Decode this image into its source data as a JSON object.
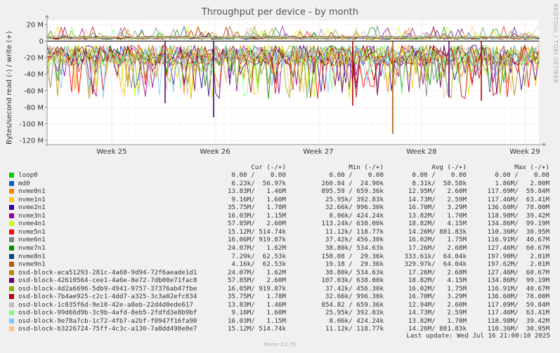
{
  "chart_data": {
    "type": "area",
    "title": "Throughput per device - by month",
    "ylabel": "Bytes/second read (-) / write (+)",
    "ylim": [
      -125000000,
      25000000
    ],
    "yticks": [
      20000000,
      0,
      -20000000,
      -40000000,
      -60000000,
      -80000000,
      -100000000,
      -120000000
    ],
    "ytick_labels": [
      "20 M",
      "0",
      "-20 M",
      "-40 M",
      "-60 M",
      "-80 M",
      "-100 M",
      "-120 M"
    ],
    "xticks": [
      "Week 25",
      "Week 26",
      "Week 27",
      "Week 28",
      "Week 29"
    ],
    "grid": true,
    "legend_placement": "bottom",
    "series_names": [
      "loop0",
      "md0",
      "nvme0n1",
      "nvme1n1",
      "nvme2n1",
      "nvme3n1",
      "nvme4n1",
      "nvme5n1",
      "nvme6n1",
      "nvme7n1",
      "nvme8n1",
      "nvme9n1",
      "osd-block-aca51293-281c-4a68-9d94-72f6aeade1d1",
      "osd-block-42610564-cee1-4a6e-8e72-7db00e71fac8",
      "osd-block-4d2a6696-5db9-4941-9757-37376ab47fbe",
      "osd-block-7b4ae925-c2c1-4dd7-a325-3c3a02efc834",
      "osd-block-1c035f6d-9e10-42e-a8eb-22d4d0ede617",
      "osd-block-99d66d9b-3c9b-4afd-8eb5-2fdfd3e8b9bf",
      "osd-block-9e78a7cb-1c72-4fb7-a2bf-f0947f16fa90",
      "osd-block-b3226724-75ff-4c3c-a130-7a8dd498e8e7"
    ]
  },
  "legend": {
    "headers": {
      "cur": "Cur (-/+)",
      "min": "Min (-/+)",
      "avg": "Avg (-/+)",
      "max": "Max (-/+)"
    },
    "rows": [
      {
        "name": "loop0",
        "color": "#00cc00",
        "cur": "0.00 /    0.00",
        "min": "0.00 /    0.00",
        "avg": "0.00 /    0.00",
        "max": "0.00 /    0.00"
      },
      {
        "name": "md0",
        "color": "#0066b3",
        "cur": "6.23k/  56.97k",
        "min": "260.84 /  24.90k",
        "avg": "8.31k/  58.58k",
        "max": "1.86M/   2.00M"
      },
      {
        "name": "nvme0n1",
        "color": "#ff8000",
        "cur": "13.83M/   1.46M",
        "min": "895.59 / 659.36k",
        "avg": "12.95M/   2.60M",
        "max": "117.09M/  59.84M"
      },
      {
        "name": "nvme1n1",
        "color": "#ffcc00",
        "cur": "9.16M/   1.60M",
        "min": "25.95k/ 392.83k",
        "avg": "14.73M/   2.59M",
        "max": "117.46M/  63.41M"
      },
      {
        "name": "nvme2n1",
        "color": "#330099",
        "cur": "35.75M/   1.78M",
        "min": "32.66k/ 996.30k",
        "avg": "16.70M/   3.29M",
        "max": "136.60M/  78.00M"
      },
      {
        "name": "nvme3n1",
        "color": "#990099",
        "cur": "16.03M/   1.15M",
        "min": "8.06k/ 424.24k",
        "avg": "13.82M/   1.70M",
        "max": "118.98M/  39.42M"
      },
      {
        "name": "nvme4n1",
        "color": "#ccff00",
        "cur": "57.85M/   2.60M",
        "min": "113.24k/ 638.00k",
        "avg": "18.82M/   4.15M",
        "max": "134.86M/  99.19M"
      },
      {
        "name": "nvme5n1",
        "color": "#ff0000",
        "cur": "15.12M/ 514.74k",
        "min": "11.12k/ 118.77k",
        "avg": "14.26M/ 881.83k",
        "max": "110.36M/  30.95M"
      },
      {
        "name": "nvme6n1",
        "color": "#808080",
        "cur": "16.06M/ 919.87k",
        "min": "37.42k/ 456.30k",
        "avg": "16.02M/   1.75M",
        "max": "116.91M/  40.67M"
      },
      {
        "name": "nvme7n1",
        "color": "#008f00",
        "cur": "24.07M/   1.62M",
        "min": "38.80k/ 534.63k",
        "avg": "17.26M/   2.68M",
        "max": "127.46M/  60.67M"
      },
      {
        "name": "nvme8n1",
        "color": "#00487d",
        "cur": "7.29k/  62.53k",
        "min": "158.08 /  29.36k",
        "avg": "333.61k/  64.04k",
        "max": "197.90M/   2.01M"
      },
      {
        "name": "nvme9n1",
        "color": "#b35a00",
        "cur": "4.16k/  62.53k",
        "min": "19.18 /  29.36k",
        "avg": "329.97k/  64.04k",
        "max": "197.62M/   2.01M"
      },
      {
        "name": "osd-block-aca51293-281c-4a68-9d94-72f6aeade1d1",
        "color": "#b38f00",
        "cur": "24.07M/   1.62M",
        "min": "38.80k/ 534.63k",
        "avg": "17.26M/   2.68M",
        "max": "127.46M/  60.67M"
      },
      {
        "name": "osd-block-42610564-cee1-4a6e-8e72-7db00e71fac8",
        "color": "#6b006b",
        "cur": "57.85M/   2.60M",
        "min": "107.03k/ 638.00k",
        "avg": "18.82M/   4.15M",
        "max": "134.86M/  99.19M"
      },
      {
        "name": "osd-block-4d2a6696-5db9-4941-9757-37376ab47fbe",
        "color": "#8fb300",
        "cur": "16.05M/ 919.87k",
        "min": "37.42k/ 456.30k",
        "avg": "16.02M/   1.75M",
        "max": "116.91M/  40.67M"
      },
      {
        "name": "osd-block-7b4ae925-c2c1-4dd7-a325-3c3a02efc834",
        "color": "#b30000",
        "cur": "35.75M/   1.78M",
        "min": "32.66k/ 996.30k",
        "avg": "16.70M/   3.29M",
        "max": "136.60M/  78.00M"
      },
      {
        "name": "osd-block-1c035f6d-9e10-42e-a8eb-22d4d0ede617",
        "color": "#bebebe",
        "cur": "13.83M/   1.46M",
        "min": "854.82 / 659.36k",
        "avg": "12.94M/   2.60M",
        "max": "117.09M/  59.84M"
      },
      {
        "name": "osd-block-99d66d9b-3c9b-4afd-8eb5-2fdfd3e8b9bf",
        "color": "#80ff80",
        "cur": "9.16M/   1.60M",
        "min": "25.95k/ 392.83k",
        "avg": "14.73M/   2.59M",
        "max": "117.46M/  63.41M"
      },
      {
        "name": "osd-block-9e78a7cb-1c72-4fb7-a2bf-f0947f16fa90",
        "color": "#80c9ff",
        "cur": "16.03M/   1.15M",
        "min": "8.06k/ 424.24k",
        "avg": "13.82M/   1.70M",
        "max": "118.98M/  39.42M"
      },
      {
        "name": "osd-block-b3226724-75ff-4c3c-a130-7a8dd498e8e7",
        "color": "#ffc080",
        "cur": "15.12M/ 514.74k",
        "min": "11.12k/ 118.77k",
        "avg": "14.26M/ 881.83k",
        "max": "110.36M/  30.95M"
      }
    ]
  },
  "footer": {
    "last_update": "Last update: Wed Jul 16 21:00:10 2025",
    "munin": "Munin 2.0.75"
  },
  "side_label": "RRDTOOL / TOBI OETIKER"
}
